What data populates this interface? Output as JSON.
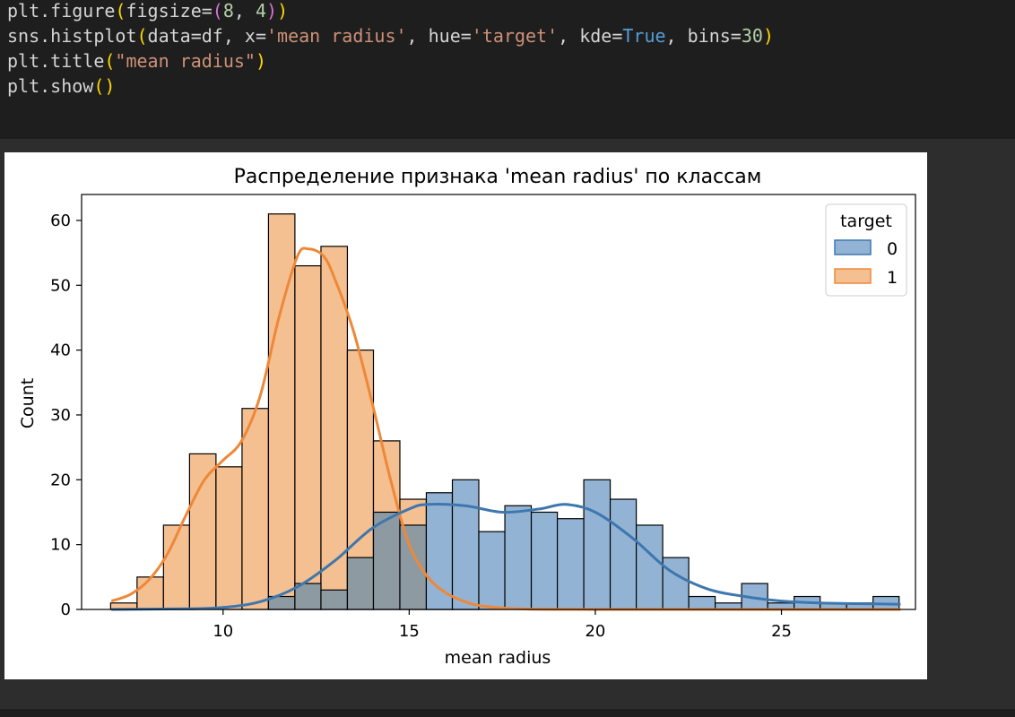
{
  "code": {
    "lines": [
      [
        {
          "t": "plt.figure"
        },
        {
          "t": "(",
          "c": "p1"
        },
        {
          "t": "figsize="
        },
        {
          "t": "(",
          "c": "p2"
        },
        {
          "t": "8",
          "c": "num"
        },
        {
          "t": ", "
        },
        {
          "t": "4",
          "c": "num"
        },
        {
          "t": ")",
          "c": "p2"
        },
        {
          "t": ")",
          "c": "p1"
        }
      ],
      [
        {
          "t": "sns.histplot"
        },
        {
          "t": "(",
          "c": "p1"
        },
        {
          "t": "data=df, x="
        },
        {
          "t": "'mean radius'",
          "c": "str"
        },
        {
          "t": ", hue="
        },
        {
          "t": "'target'",
          "c": "str"
        },
        {
          "t": ", kde="
        },
        {
          "t": "True",
          "c": "kw"
        },
        {
          "t": ", bins="
        },
        {
          "t": "30",
          "c": "num"
        },
        {
          "t": ")",
          "c": "p1"
        }
      ],
      [
        {
          "t": "plt.title"
        },
        {
          "t": "(",
          "c": "p1"
        },
        {
          "t": "\"mean radius\"",
          "c": "str"
        },
        {
          "t": ")",
          "c": "p1"
        }
      ],
      [
        {
          "t": "plt.show"
        },
        {
          "t": "()",
          "c": "p1"
        }
      ]
    ]
  },
  "colors": {
    "series0_fill": "#92b3d4",
    "series0_line": "#3e77ad",
    "series1_fill": "#f4bf91",
    "series1_line": "#ee8838",
    "overlap_fill": "#8e9aa2"
  },
  "chart_data": {
    "type": "bar",
    "title": "Распределение признака 'mean radius' по классам",
    "xlabel": "mean radius",
    "ylabel": "Count",
    "xlim": [
      6.2,
      28.6
    ],
    "ylim": [
      0,
      64
    ],
    "x_ticks": [
      10,
      15,
      20,
      25
    ],
    "y_ticks": [
      0,
      10,
      20,
      30,
      40,
      50,
      60
    ],
    "grid": false,
    "legend": {
      "title": "target",
      "placement": "top-right"
    },
    "bin_edges": [
      6.98,
      7.69,
      8.4,
      9.1,
      9.81,
      10.51,
      11.22,
      11.93,
      12.63,
      13.34,
      14.04,
      14.75,
      15.46,
      16.16,
      16.87,
      17.57,
      18.28,
      18.98,
      19.69,
      20.4,
      21.1,
      21.81,
      22.51,
      23.22,
      23.93,
      24.63,
      25.34,
      26.04,
      26.75,
      27.46,
      28.16
    ],
    "series": [
      {
        "name": "0",
        "values": [
          0,
          0,
          0,
          0,
          0,
          0,
          2,
          4,
          3,
          8,
          15,
          13,
          18,
          20,
          12,
          16,
          15,
          14,
          20,
          17,
          13,
          8,
          2,
          1,
          4,
          1,
          2,
          1,
          1,
          2
        ],
        "kde": [
          [
            7.0,
            0.0
          ],
          [
            9.0,
            0.1
          ],
          [
            10.0,
            0.3
          ],
          [
            11.0,
            1.2
          ],
          [
            12.0,
            3.5
          ],
          [
            13.0,
            7.5
          ],
          [
            14.0,
            12.5
          ],
          [
            15.0,
            15.5
          ],
          [
            15.5,
            16.2
          ],
          [
            16.5,
            16.0
          ],
          [
            17.5,
            15.0
          ],
          [
            18.5,
            15.5
          ],
          [
            19.2,
            16.2
          ],
          [
            20.0,
            15.0
          ],
          [
            21.0,
            11.0
          ],
          [
            22.0,
            6.0
          ],
          [
            23.0,
            3.2
          ],
          [
            24.0,
            2.0
          ],
          [
            25.0,
            1.3
          ],
          [
            26.0,
            1.0
          ],
          [
            27.0,
            0.9
          ],
          [
            28.2,
            0.8
          ]
        ]
      },
      {
        "name": "1",
        "values": [
          1,
          5,
          13,
          24,
          22,
          31,
          61,
          53,
          56,
          40,
          26,
          17,
          2,
          5,
          0,
          0,
          0,
          0,
          0,
          0,
          0,
          0,
          0,
          0,
          0,
          0,
          0,
          0,
          0,
          0
        ],
        "kde": [
          [
            7.0,
            1.3
          ],
          [
            7.5,
            2.3
          ],
          [
            8.0,
            4.5
          ],
          [
            8.5,
            8.5
          ],
          [
            9.0,
            14.5
          ],
          [
            9.5,
            20.0
          ],
          [
            10.0,
            23.0
          ],
          [
            10.5,
            26.0
          ],
          [
            11.0,
            33.0
          ],
          [
            11.5,
            45.0
          ],
          [
            12.0,
            54.5
          ],
          [
            12.3,
            55.6
          ],
          [
            12.7,
            54.5
          ],
          [
            13.0,
            51.0
          ],
          [
            13.5,
            43.0
          ],
          [
            14.0,
            32.0
          ],
          [
            14.5,
            20.0
          ],
          [
            15.0,
            10.0
          ],
          [
            15.5,
            5.0
          ],
          [
            16.0,
            2.5
          ],
          [
            16.5,
            1.2
          ],
          [
            17.0,
            0.5
          ],
          [
            18.0,
            0.1
          ],
          [
            20.0,
            0.0
          ],
          [
            28.2,
            0.0
          ]
        ]
      }
    ]
  }
}
